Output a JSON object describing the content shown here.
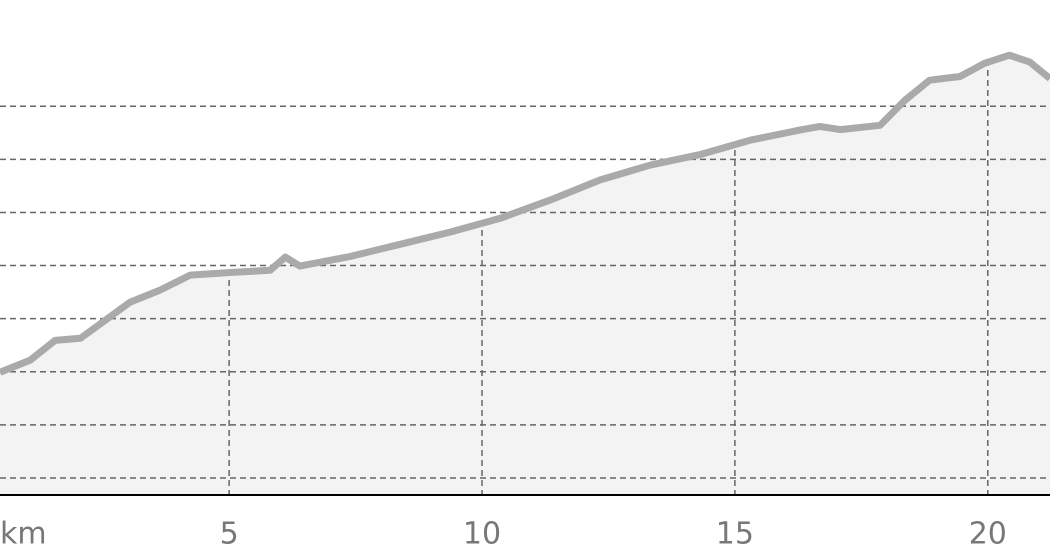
{
  "chart_data": {
    "type": "area",
    "x_label": "km",
    "x": [
      0.47,
      1.07,
      1.56,
      2.06,
      2.55,
      3.04,
      3.64,
      4.23,
      5.02,
      5.81,
      6.11,
      6.4,
      7.39,
      8.38,
      9.37,
      10.36,
      11.34,
      12.33,
      13.32,
      14.31,
      15.3,
      16.28,
      16.68,
      17.08,
      17.87,
      18.36,
      18.85,
      19.45,
      19.94,
      20.43,
      20.83,
      21.23
    ],
    "values": [
      2.99,
      3.22,
      3.59,
      3.63,
      3.97,
      4.31,
      4.54,
      4.82,
      4.87,
      4.91,
      5.16,
      4.99,
      5.17,
      5.4,
      5.63,
      5.89,
      6.23,
      6.61,
      6.89,
      7.09,
      7.36,
      7.55,
      7.62,
      7.56,
      7.64,
      8.11,
      8.49,
      8.56,
      8.81,
      8.96,
      8.83,
      8.52
    ],
    "color": "#aaaaaa",
    "fill": "#f3f3f3",
    "xlim": [
      0.47,
      21.23
    ],
    "xticks": [
      5,
      10,
      15,
      20
    ],
    "ylim": [
      0.68,
      10
    ],
    "yticks": [
      1,
      2,
      3,
      4,
      5,
      6,
      7,
      8
    ],
    "grid": true
  }
}
